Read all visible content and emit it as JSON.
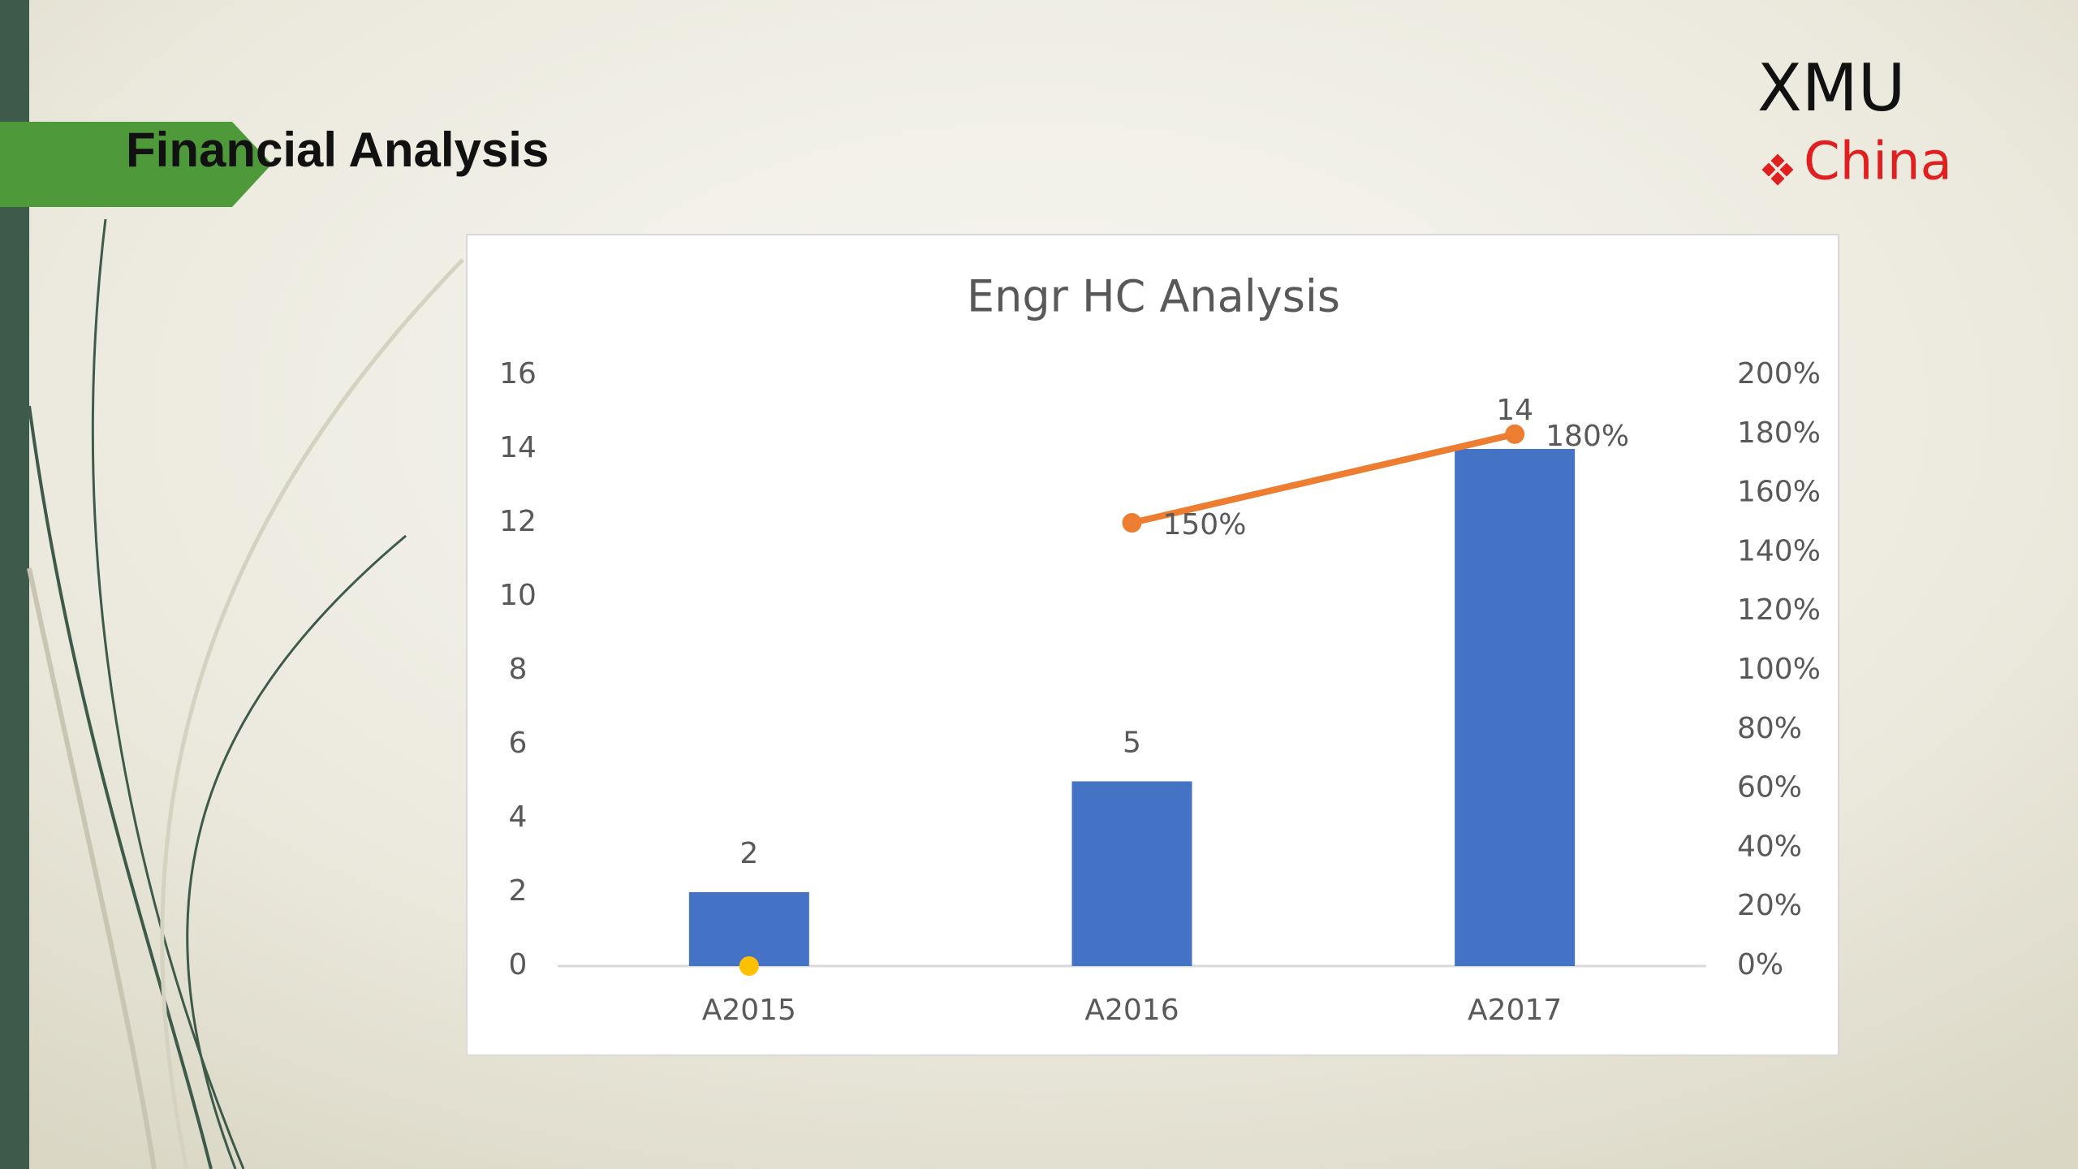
{
  "header": {
    "title": "Financial Analysis"
  },
  "logo": {
    "name": "XMU",
    "region": "China"
  },
  "chart_data": {
    "type": "bar",
    "title": "Engr HC Analysis",
    "categories": [
      "A2015",
      "A2016",
      "A2017"
    ],
    "series": [
      {
        "type": "bar",
        "color": "#4472c4",
        "values": [
          2,
          5,
          14
        ]
      },
      {
        "type": "line",
        "axis": "y2",
        "color": "#ed7d31",
        "values": [
          null,
          150,
          180
        ],
        "value_labels": [
          null,
          "150%",
          "180%"
        ]
      },
      {
        "type": "dot",
        "axis": "y2",
        "color": "#ffc000",
        "values": [
          0,
          null,
          null
        ]
      }
    ],
    "ylim": [
      0,
      16
    ],
    "yticks": [
      0,
      2,
      4,
      6,
      8,
      10,
      12,
      14,
      16
    ],
    "y2lim": [
      0,
      200
    ],
    "y2ticks": [
      {
        "value": 0,
        "label": "0%"
      },
      {
        "value": 20,
        "label": "20%"
      },
      {
        "value": 40,
        "label": "40%"
      },
      {
        "value": 60,
        "label": "60%"
      },
      {
        "value": 80,
        "label": "80%"
      },
      {
        "value": 100,
        "label": "100%"
      },
      {
        "value": 120,
        "label": "120%"
      },
      {
        "value": 140,
        "label": "140%"
      },
      {
        "value": 160,
        "label": "160%"
      },
      {
        "value": 180,
        "label": "180%"
      },
      {
        "value": 200,
        "label": "200%"
      }
    ],
    "grid": false
  }
}
